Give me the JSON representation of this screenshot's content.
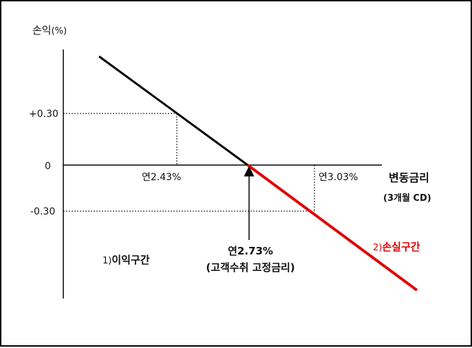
{
  "diagram": {
    "y_axis_label": "손익",
    "y_axis_unit": "(%)",
    "x_axis_label": "변동금리",
    "x_axis_sublabel": "(3개월 CD)",
    "y_ticks": [
      "+0.30",
      "0",
      "-0.30"
    ],
    "points": {
      "left_rate": "연2.43%",
      "right_rate": "연3.03%",
      "fixed_rate": "연2.73%",
      "fixed_rate_note": "(고객수취 고정금리)"
    },
    "zones": {
      "profit_number": "1)",
      "profit_label": "이익구간",
      "loss_number": "2)",
      "loss_label": "손실구간"
    },
    "colors": {
      "profit_line": "#000000",
      "loss_line": "#e00000",
      "loss_text": "#e00000"
    }
  }
}
